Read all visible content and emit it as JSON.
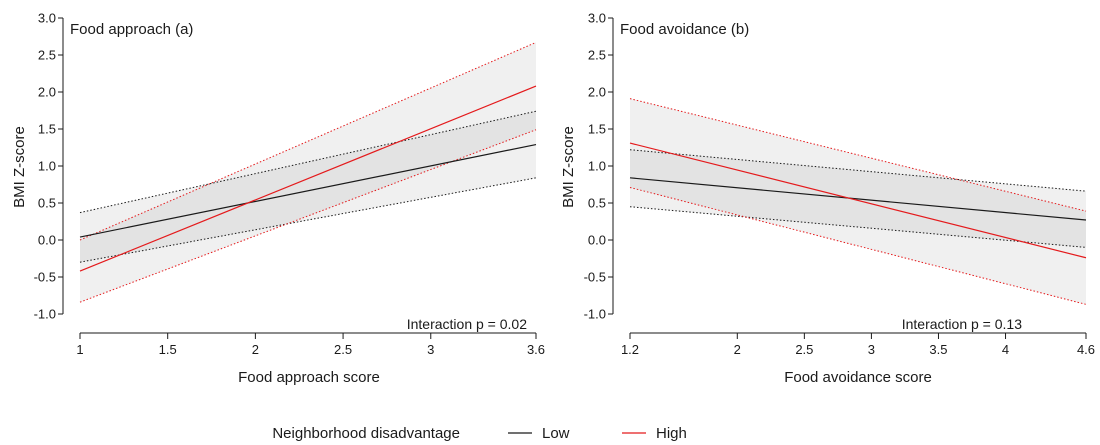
{
  "chart_data": [
    {
      "type": "line",
      "panel_title": "Food approach (a)",
      "xlabel": "Food approach score",
      "ylabel": "BMI Z-score",
      "xlim": [
        1,
        3.6
      ],
      "ylim": [
        -1.0,
        3.0
      ],
      "x_ticks": [
        1,
        1.5,
        2,
        2.5,
        3,
        3.6
      ],
      "x_tick_labels": [
        "1",
        "1.5",
        "2",
        "2.5",
        "3",
        "3.6"
      ],
      "y_ticks": [
        -1.0,
        -0.5,
        0.0,
        0.5,
        1.0,
        1.5,
        2.0,
        2.5,
        3.0
      ],
      "y_tick_labels": [
        "-1.0",
        "-0.5",
        "0.0",
        "0.5",
        "1.0",
        "1.5",
        "2.0",
        "2.5",
        "3.0"
      ],
      "grid": false,
      "annotation": "Interaction p = 0.02",
      "series": [
        {
          "name": "Low",
          "color": "#1a1a1a",
          "x": [
            1,
            3.6
          ],
          "y": [
            0.04,
            1.29
          ],
          "ci_lower": [
            -0.3,
            0.84
          ],
          "ci_upper": [
            0.37,
            1.74
          ]
        },
        {
          "name": "High",
          "color": "#e41a1c",
          "x": [
            1,
            3.6
          ],
          "y": [
            -0.42,
            2.08
          ],
          "ci_lower": [
            -0.84,
            1.49
          ],
          "ci_upper": [
            0.0,
            2.67
          ]
        }
      ]
    },
    {
      "type": "line",
      "panel_title": "Food avoidance (b)",
      "xlabel": "Food avoidance score",
      "ylabel": "BMI Z-score",
      "xlim": [
        1.2,
        4.6
      ],
      "ylim": [
        -1.0,
        3.0
      ],
      "x_ticks": [
        1.2,
        2,
        2.5,
        3,
        3.5,
        4,
        4.6
      ],
      "x_tick_labels": [
        "1.2",
        "2",
        "2.5",
        "3",
        "3.5",
        "4",
        "4.6"
      ],
      "y_ticks": [
        -1.0,
        -0.5,
        0.0,
        0.5,
        1.0,
        1.5,
        2.0,
        2.5,
        3.0
      ],
      "y_tick_labels": [
        "-1.0",
        "-0.5",
        "0.0",
        "0.5",
        "1.0",
        "1.5",
        "2.0",
        "2.5",
        "3.0"
      ],
      "grid": false,
      "annotation": "Interaction p = 0.13",
      "series": [
        {
          "name": "Low",
          "color": "#1a1a1a",
          "x": [
            1.2,
            4.6
          ],
          "y": [
            0.84,
            0.27
          ],
          "ci_lower": [
            0.45,
            -0.1
          ],
          "ci_upper": [
            1.22,
            0.66
          ]
        },
        {
          "name": "High",
          "color": "#e41a1c",
          "x": [
            1.2,
            4.6
          ],
          "y": [
            1.31,
            -0.24
          ],
          "ci_lower": [
            0.71,
            -0.87
          ],
          "ci_upper": [
            1.91,
            0.39
          ]
        }
      ]
    }
  ],
  "legend": {
    "title": "Neighborhood disadvantage",
    "placement": "bottom-center",
    "items": [
      {
        "label": "Low",
        "color": "#1a1a1a"
      },
      {
        "label": "High",
        "color": "#e41a1c"
      }
    ]
  }
}
